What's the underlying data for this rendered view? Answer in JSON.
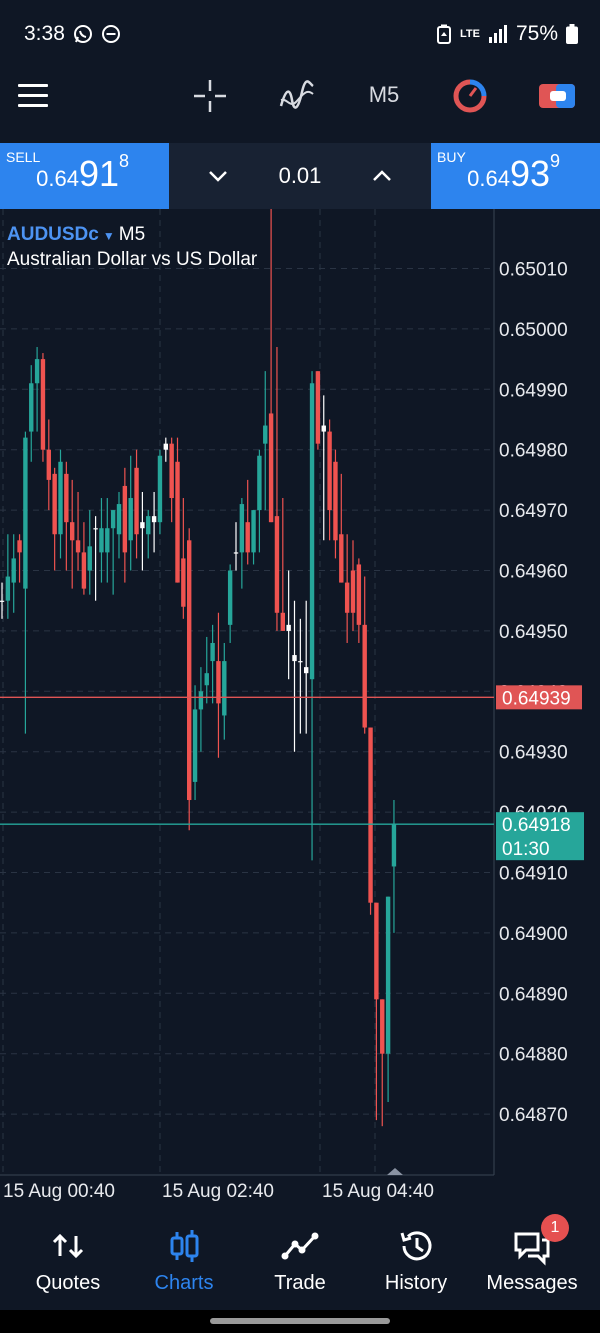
{
  "status_bar": {
    "time": "3:38",
    "network": "LTE",
    "battery": "75%",
    "left_icons": [
      "whatsapp-icon",
      "do-not-disturb-icon"
    ],
    "right_icons": [
      "battery-saver-icon",
      "signal-icon",
      "battery-icon"
    ]
  },
  "toolbar": {
    "timeframe": "M5",
    "icons": [
      "menu-icon",
      "crosshair-icon",
      "indicators-icon",
      "speed-icon",
      "one-click-trading-icon"
    ]
  },
  "trade_panel": {
    "sell": {
      "label": "SELL",
      "price_small": "0.64",
      "price_big": "91",
      "price_sup": "8"
    },
    "buy": {
      "label": "BUY",
      "price_small": "0.64",
      "price_big": "93",
      "price_sup": "9"
    },
    "volume": "0.01"
  },
  "chart": {
    "symbol": "AUDUSDc",
    "timeframe": "M5",
    "description": "Australian Dollar vs US Dollar",
    "y_labels": [
      "0.65010",
      "0.65000",
      "0.64990",
      "0.64980",
      "0.64970",
      "0.64960",
      "0.64950",
      "0.64940",
      "0.64930",
      "0.64920",
      "0.64910",
      "0.64900",
      "0.64890",
      "0.64880",
      "0.64870"
    ],
    "x_labels": [
      "15 Aug 00:40",
      "15 Aug 02:40",
      "15 Aug 04:40"
    ],
    "ask_line": {
      "price": "0.64939",
      "color": "#e05555"
    },
    "bid_line": {
      "price": "0.64918",
      "countdown": "01:30",
      "color": "#26a69a"
    },
    "colors": {
      "bull": "#26a69a",
      "bear": "#ef5350",
      "doji": "#ffffff",
      "grid": "#2a3444",
      "axis_text": "#e8eaee"
    }
  },
  "chart_data": {
    "type": "candlestick",
    "timeframe": "M5",
    "ylim": [
      0.64861,
      0.65024
    ],
    "x_ticks": [
      "15 Aug 00:40",
      "15 Aug 02:40",
      "15 Aug 04:40"
    ],
    "candles": [
      {
        "o": 0.64955,
        "h": 0.64958,
        "l": 0.64952,
        "c": 0.64955
      },
      {
        "o": 0.64955,
        "h": 0.64966,
        "l": 0.64952,
        "c": 0.64959
      },
      {
        "o": 0.64958,
        "h": 0.64966,
        "l": 0.64953,
        "c": 0.64962
      },
      {
        "o": 0.64965,
        "h": 0.64966,
        "l": 0.64958,
        "c": 0.64963
      },
      {
        "o": 0.64957,
        "h": 0.64983,
        "l": 0.64933,
        "c": 0.64982
      },
      {
        "o": 0.64983,
        "h": 0.64994,
        "l": 0.64978,
        "c": 0.64991
      },
      {
        "o": 0.64991,
        "h": 0.64997,
        "l": 0.64983,
        "c": 0.64995
      },
      {
        "o": 0.64995,
        "h": 0.64996,
        "l": 0.64978,
        "c": 0.6498
      },
      {
        "o": 0.6498,
        "h": 0.64985,
        "l": 0.6497,
        "c": 0.64975
      },
      {
        "o": 0.64976,
        "h": 0.64977,
        "l": 0.6496,
        "c": 0.64966
      },
      {
        "o": 0.64966,
        "h": 0.6498,
        "l": 0.64962,
        "c": 0.64978
      },
      {
        "o": 0.64976,
        "h": 0.64978,
        "l": 0.6496,
        "c": 0.64968
      },
      {
        "o": 0.64968,
        "h": 0.64975,
        "l": 0.64957,
        "c": 0.64965
      },
      {
        "o": 0.64965,
        "h": 0.64973,
        "l": 0.6496,
        "c": 0.64963
      },
      {
        "o": 0.64963,
        "h": 0.64968,
        "l": 0.64956,
        "c": 0.64957
      },
      {
        "o": 0.6496,
        "h": 0.6497,
        "l": 0.64956,
        "c": 0.64964
      },
      {
        "o": 0.64967,
        "h": 0.64969,
        "l": 0.64955,
        "c": 0.64967
      },
      {
        "o": 0.64963,
        "h": 0.64972,
        "l": 0.64958,
        "c": 0.64967
      },
      {
        "o": 0.64963,
        "h": 0.64972,
        "l": 0.64958,
        "c": 0.64967
      },
      {
        "o": 0.64967,
        "h": 0.6497,
        "l": 0.64956,
        "c": 0.6497
      },
      {
        "o": 0.64966,
        "h": 0.64973,
        "l": 0.64962,
        "c": 0.64971
      },
      {
        "o": 0.64974,
        "h": 0.64977,
        "l": 0.64958,
        "c": 0.64963
      },
      {
        "o": 0.64965,
        "h": 0.64979,
        "l": 0.6496,
        "c": 0.64972
      },
      {
        "o": 0.64977,
        "h": 0.6498,
        "l": 0.64962,
        "c": 0.64966
      },
      {
        "o": 0.64967,
        "h": 0.64973,
        "l": 0.6496,
        "c": 0.64968
      },
      {
        "o": 0.64966,
        "h": 0.6497,
        "l": 0.64962,
        "c": 0.64969
      },
      {
        "o": 0.64969,
        "h": 0.64973,
        "l": 0.64963,
        "c": 0.64968
      },
      {
        "o": 0.64968,
        "h": 0.6498,
        "l": 0.64966,
        "c": 0.64979
      },
      {
        "o": 0.64981,
        "h": 0.64982,
        "l": 0.64978,
        "c": 0.6498
      },
      {
        "o": 0.64981,
        "h": 0.64982,
        "l": 0.64968,
        "c": 0.64972
      },
      {
        "o": 0.64978,
        "h": 0.64982,
        "l": 0.64958,
        "c": 0.64958
      },
      {
        "o": 0.64962,
        "h": 0.64972,
        "l": 0.64952,
        "c": 0.64954
      },
      {
        "o": 0.64965,
        "h": 0.64967,
        "l": 0.64917,
        "c": 0.64922
      },
      {
        "o": 0.64925,
        "h": 0.64941,
        "l": 0.64922,
        "c": 0.64937
      },
      {
        "o": 0.64937,
        "h": 0.64944,
        "l": 0.6493,
        "c": 0.6494
      },
      {
        "o": 0.64941,
        "h": 0.64949,
        "l": 0.64938,
        "c": 0.64943
      },
      {
        "o": 0.64945,
        "h": 0.64951,
        "l": 0.64938,
        "c": 0.64948
      },
      {
        "o": 0.64945,
        "h": 0.64953,
        "l": 0.64929,
        "c": 0.64938
      },
      {
        "o": 0.64936,
        "h": 0.64948,
        "l": 0.64932,
        "c": 0.64945
      },
      {
        "o": 0.64951,
        "h": 0.64961,
        "l": 0.64948,
        "c": 0.6496
      },
      {
        "o": 0.64963,
        "h": 0.64968,
        "l": 0.6496,
        "c": 0.64963
      },
      {
        "o": 0.64963,
        "h": 0.64972,
        "l": 0.64957,
        "c": 0.64971
      },
      {
        "o": 0.64968,
        "h": 0.64975,
        "l": 0.64961,
        "c": 0.64963
      },
      {
        "o": 0.64963,
        "h": 0.6497,
        "l": 0.64961,
        "c": 0.6497
      },
      {
        "o": 0.6497,
        "h": 0.6498,
        "l": 0.64963,
        "c": 0.64979
      },
      {
        "o": 0.64981,
        "h": 0.64993,
        "l": 0.6497,
        "c": 0.64984
      },
      {
        "o": 0.64986,
        "h": 0.65024,
        "l": 0.64968,
        "c": 0.64968
      },
      {
        "o": 0.64969,
        "h": 0.64997,
        "l": 0.6495,
        "c": 0.64953
      },
      {
        "o": 0.64953,
        "h": 0.64972,
        "l": 0.6495,
        "c": 0.6495
      },
      {
        "o": 0.64951,
        "h": 0.6496,
        "l": 0.64942,
        "c": 0.6495
      },
      {
        "o": 0.64946,
        "h": 0.64955,
        "l": 0.6493,
        "c": 0.64945
      },
      {
        "o": 0.64945,
        "h": 0.64952,
        "l": 0.64933,
        "c": 0.64945
      },
      {
        "o": 0.64944,
        "h": 0.64955,
        "l": 0.64933,
        "c": 0.64943
      },
      {
        "o": 0.64942,
        "h": 0.64993,
        "l": 0.64912,
        "c": 0.64991
      },
      {
        "o": 0.64993,
        "h": 0.64993,
        "l": 0.6498,
        "c": 0.64981
      },
      {
        "o": 0.64983,
        "h": 0.64989,
        "l": 0.64965,
        "c": 0.64984
      },
      {
        "o": 0.64983,
        "h": 0.64985,
        "l": 0.64965,
        "c": 0.6497
      },
      {
        "o": 0.64978,
        "h": 0.6498,
        "l": 0.64962,
        "c": 0.64965
      },
      {
        "o": 0.64966,
        "h": 0.64976,
        "l": 0.64958,
        "c": 0.64958
      },
      {
        "o": 0.64958,
        "h": 0.64966,
        "l": 0.64948,
        "c": 0.64953
      },
      {
        "o": 0.6496,
        "h": 0.64965,
        "l": 0.6495,
        "c": 0.64953
      },
      {
        "o": 0.64961,
        "h": 0.64962,
        "l": 0.64948,
        "c": 0.64951
      },
      {
        "o": 0.64951,
        "h": 0.64959,
        "l": 0.64933,
        "c": 0.64934
      },
      {
        "o": 0.64934,
        "h": 0.64934,
        "l": 0.64903,
        "c": 0.64905
      },
      {
        "o": 0.64905,
        "h": 0.64905,
        "l": 0.64869,
        "c": 0.64889
      },
      {
        "o": 0.64889,
        "h": 0.64889,
        "l": 0.64868,
        "c": 0.6488
      },
      {
        "o": 0.6488,
        "h": 0.64906,
        "l": 0.64872,
        "c": 0.64906
      },
      {
        "o": 0.64911,
        "h": 0.64922,
        "l": 0.649,
        "c": 0.64918
      }
    ]
  },
  "bottom_nav": [
    {
      "label": "Quotes",
      "icon": "quotes-icon"
    },
    {
      "label": "Charts",
      "icon": "charts-icon"
    },
    {
      "label": "Trade",
      "icon": "trade-icon"
    },
    {
      "label": "History",
      "icon": "history-icon"
    },
    {
      "label": "Messages",
      "icon": "messages-icon",
      "badge": "1"
    }
  ],
  "active_tab": "Charts"
}
